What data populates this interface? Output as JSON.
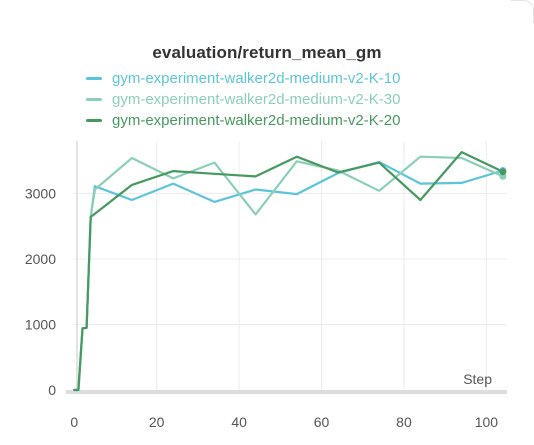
{
  "chart_data": {
    "type": "line",
    "title": "evaluation/return_mean_gm",
    "xlabel": "Step",
    "ylabel": "",
    "xlim": [
      -2,
      105
    ],
    "ylim": [
      -30,
      3800
    ],
    "xticks": [
      0,
      20,
      40,
      60,
      80,
      100
    ],
    "yticks": [
      0,
      1000,
      2000,
      3000
    ],
    "grid": true,
    "legend_position": "top-left",
    "series": [
      {
        "name": "gym-experiment-walker2d-medium-v2-K-10",
        "color": "#5bc5da",
        "x": [
          0,
          1,
          2,
          3,
          4,
          5,
          14,
          24,
          34,
          44,
          54,
          64,
          74,
          84,
          94,
          104
        ],
        "y": [
          0,
          0,
          940,
          950,
          2640,
          3110,
          2900,
          3150,
          2870,
          3060,
          2990,
          3310,
          3480,
          3150,
          3160,
          3350
        ]
      },
      {
        "name": "gym-experiment-walker2d-medium-v2-K-30",
        "color": "#8ccfb8",
        "x": [
          0,
          1,
          2,
          3,
          4,
          5,
          14,
          24,
          34,
          44,
          54,
          64,
          74,
          84,
          94,
          104
        ],
        "y": [
          0,
          0,
          940,
          950,
          2640,
          3060,
          3540,
          3230,
          3470,
          2680,
          3490,
          3350,
          3040,
          3560,
          3540,
          3260
        ]
      },
      {
        "name": "gym-experiment-walker2d-medium-v2-K-20",
        "color": "#479a5f",
        "x": [
          0,
          1,
          2,
          3,
          4,
          14,
          24,
          34,
          44,
          54,
          64,
          74,
          84,
          94,
          104
        ],
        "y": [
          0,
          0,
          940,
          950,
          2640,
          3130,
          3340,
          3300,
          3260,
          3560,
          3320,
          3470,
          2900,
          3630,
          3330
        ]
      }
    ]
  }
}
